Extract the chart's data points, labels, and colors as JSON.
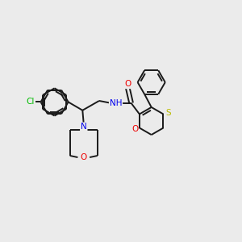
{
  "background_color": "#ebebeb",
  "bond_color": "#1a1a1a",
  "atom_colors": {
    "Cl": "#00bb00",
    "N": "#0000ee",
    "O": "#ee0000",
    "S": "#bbbb00",
    "C": "#1a1a1a",
    "H": "#1a1a1a"
  },
  "figsize": [
    3.0,
    3.0
  ],
  "dpi": 100,
  "lw": 1.4,
  "fontsize": 7.5
}
